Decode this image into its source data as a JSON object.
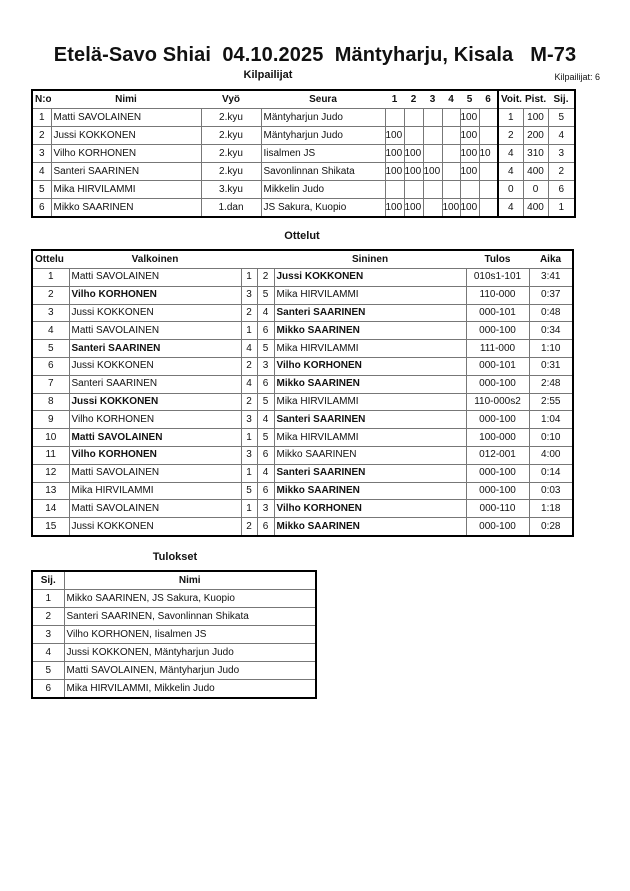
{
  "header": {
    "title": "Etelä-Savo Shiai  04.10.2025  Mäntyharju, Kisala   M-73",
    "competitors_heading": "Kilpailijat",
    "competitor_count": "Kilpailijat: 6"
  },
  "competitors": {
    "columns": [
      "N:o",
      "Nimi",
      "Vyö",
      "Seura",
      "1",
      "2",
      "3",
      "4",
      "5",
      "6",
      "Voit.",
      "Pist.",
      "Sij."
    ],
    "rows": [
      {
        "no": "1",
        "name": "Matti SAVOLAINEN",
        "belt": "2.kyu",
        "club": "Mäntyharjun Judo",
        "scores": [
          "",
          "",
          "",
          "",
          "100",
          ""
        ],
        "wins": "1",
        "points": "100",
        "place": "5"
      },
      {
        "no": "2",
        "name": "Jussi KOKKONEN",
        "belt": "2.kyu",
        "club": "Mäntyharjun Judo",
        "scores": [
          "100",
          "",
          "",
          "",
          "100",
          ""
        ],
        "wins": "2",
        "points": "200",
        "place": "4"
      },
      {
        "no": "3",
        "name": "Vilho KORHONEN",
        "belt": "2.kyu",
        "club": "Iisalmen JS",
        "scores": [
          "100",
          "100",
          "",
          "",
          "100",
          "10"
        ],
        "wins": "4",
        "points": "310",
        "place": "3"
      },
      {
        "no": "4",
        "name": "Santeri SAARINEN",
        "belt": "2.kyu",
        "club": "Savonlinnan Shikata",
        "scores": [
          "100",
          "100",
          "100",
          "",
          "100",
          ""
        ],
        "wins": "4",
        "points": "400",
        "place": "2"
      },
      {
        "no": "5",
        "name": "Mika HIRVILAMMI",
        "belt": "3.kyu",
        "club": "Mikkelin Judo",
        "scores": [
          "",
          "",
          "",
          "",
          "",
          ""
        ],
        "wins": "0",
        "points": "0",
        "place": "6"
      },
      {
        "no": "6",
        "name": "Mikko SAARINEN",
        "belt": "1.dan",
        "club": "JS Sakura, Kuopio",
        "scores": [
          "100",
          "100",
          "",
          "100",
          "100",
          ""
        ],
        "wins": "4",
        "points": "400",
        "place": "1"
      }
    ]
  },
  "matches": {
    "heading": "Ottelut",
    "columns": [
      "Ottelu",
      "Valkoinen",
      "Sininen",
      "Tulos",
      "Aika"
    ],
    "rows": [
      {
        "no": "1",
        "white": "Matti SAVOLAINEN",
        "wn": "1",
        "bn": "2",
        "blue": "Jussi KOKKONEN",
        "result": "010s1-101",
        "time": "3:41",
        "winner": "blue"
      },
      {
        "no": "2",
        "white": "Vilho KORHONEN",
        "wn": "3",
        "bn": "5",
        "blue": "Mika HIRVILAMMI",
        "result": "110-000",
        "time": "0:37",
        "winner": "white"
      },
      {
        "no": "3",
        "white": "Jussi KOKKONEN",
        "wn": "2",
        "bn": "4",
        "blue": "Santeri SAARINEN",
        "result": "000-101",
        "time": "0:48",
        "winner": "blue"
      },
      {
        "no": "4",
        "white": "Matti SAVOLAINEN",
        "wn": "1",
        "bn": "6",
        "blue": "Mikko SAARINEN",
        "result": "000-100",
        "time": "0:34",
        "winner": "blue"
      },
      {
        "no": "5",
        "white": "Santeri SAARINEN",
        "wn": "4",
        "bn": "5",
        "blue": "Mika HIRVILAMMI",
        "result": "111-000",
        "time": "1:10",
        "winner": "white"
      },
      {
        "no": "6",
        "white": "Jussi KOKKONEN",
        "wn": "2",
        "bn": "3",
        "blue": "Vilho KORHONEN",
        "result": "000-101",
        "time": "0:31",
        "winner": "blue"
      },
      {
        "no": "7",
        "white": "Santeri SAARINEN",
        "wn": "4",
        "bn": "6",
        "blue": "Mikko SAARINEN",
        "result": "000-100",
        "time": "2:48",
        "winner": "blue"
      },
      {
        "no": "8",
        "white": "Jussi KOKKONEN",
        "wn": "2",
        "bn": "5",
        "blue": "Mika HIRVILAMMI",
        "result": "110-000s2",
        "time": "2:55",
        "winner": "white"
      },
      {
        "no": "9",
        "white": "Vilho KORHONEN",
        "wn": "3",
        "bn": "4",
        "blue": "Santeri SAARINEN",
        "result": "000-100",
        "time": "1:04",
        "winner": "blue"
      },
      {
        "no": "10",
        "white": "Matti SAVOLAINEN",
        "wn": "1",
        "bn": "5",
        "blue": "Mika HIRVILAMMI",
        "result": "100-000",
        "time": "0:10",
        "winner": "white"
      },
      {
        "no": "11",
        "white": "Vilho KORHONEN",
        "wn": "3",
        "bn": "6",
        "blue": "Mikko SAARINEN",
        "result": "012-001",
        "time": "4:00",
        "winner": "white"
      },
      {
        "no": "12",
        "white": "Matti SAVOLAINEN",
        "wn": "1",
        "bn": "4",
        "blue": "Santeri SAARINEN",
        "result": "000-100",
        "time": "0:14",
        "winner": "blue"
      },
      {
        "no": "13",
        "white": "Mika HIRVILAMMI",
        "wn": "5",
        "bn": "6",
        "blue": "Mikko SAARINEN",
        "result": "000-100",
        "time": "0:03",
        "winner": "blue"
      },
      {
        "no": "14",
        "white": "Matti SAVOLAINEN",
        "wn": "1",
        "bn": "3",
        "blue": "Vilho KORHONEN",
        "result": "000-110",
        "time": "1:18",
        "winner": "blue"
      },
      {
        "no": "15",
        "white": "Jussi KOKKONEN",
        "wn": "2",
        "bn": "6",
        "blue": "Mikko SAARINEN",
        "result": "000-100",
        "time": "0:28",
        "winner": "blue"
      }
    ]
  },
  "results": {
    "heading": "Tulokset",
    "columns": [
      "Sij.",
      "Nimi"
    ],
    "rows": [
      {
        "place": "1",
        "name": "Mikko SAARINEN, JS Sakura, Kuopio"
      },
      {
        "place": "2",
        "name": "Santeri SAARINEN, Savonlinnan Shikata"
      },
      {
        "place": "3",
        "name": "Vilho KORHONEN, Iisalmen JS"
      },
      {
        "place": "4",
        "name": "Jussi KOKKONEN, Mäntyharjun Judo"
      },
      {
        "place": "5",
        "name": "Matti SAVOLAINEN, Mäntyharjun Judo"
      },
      {
        "place": "6",
        "name": "Mika HIRVILAMMI, Mikkelin Judo"
      }
    ]
  }
}
